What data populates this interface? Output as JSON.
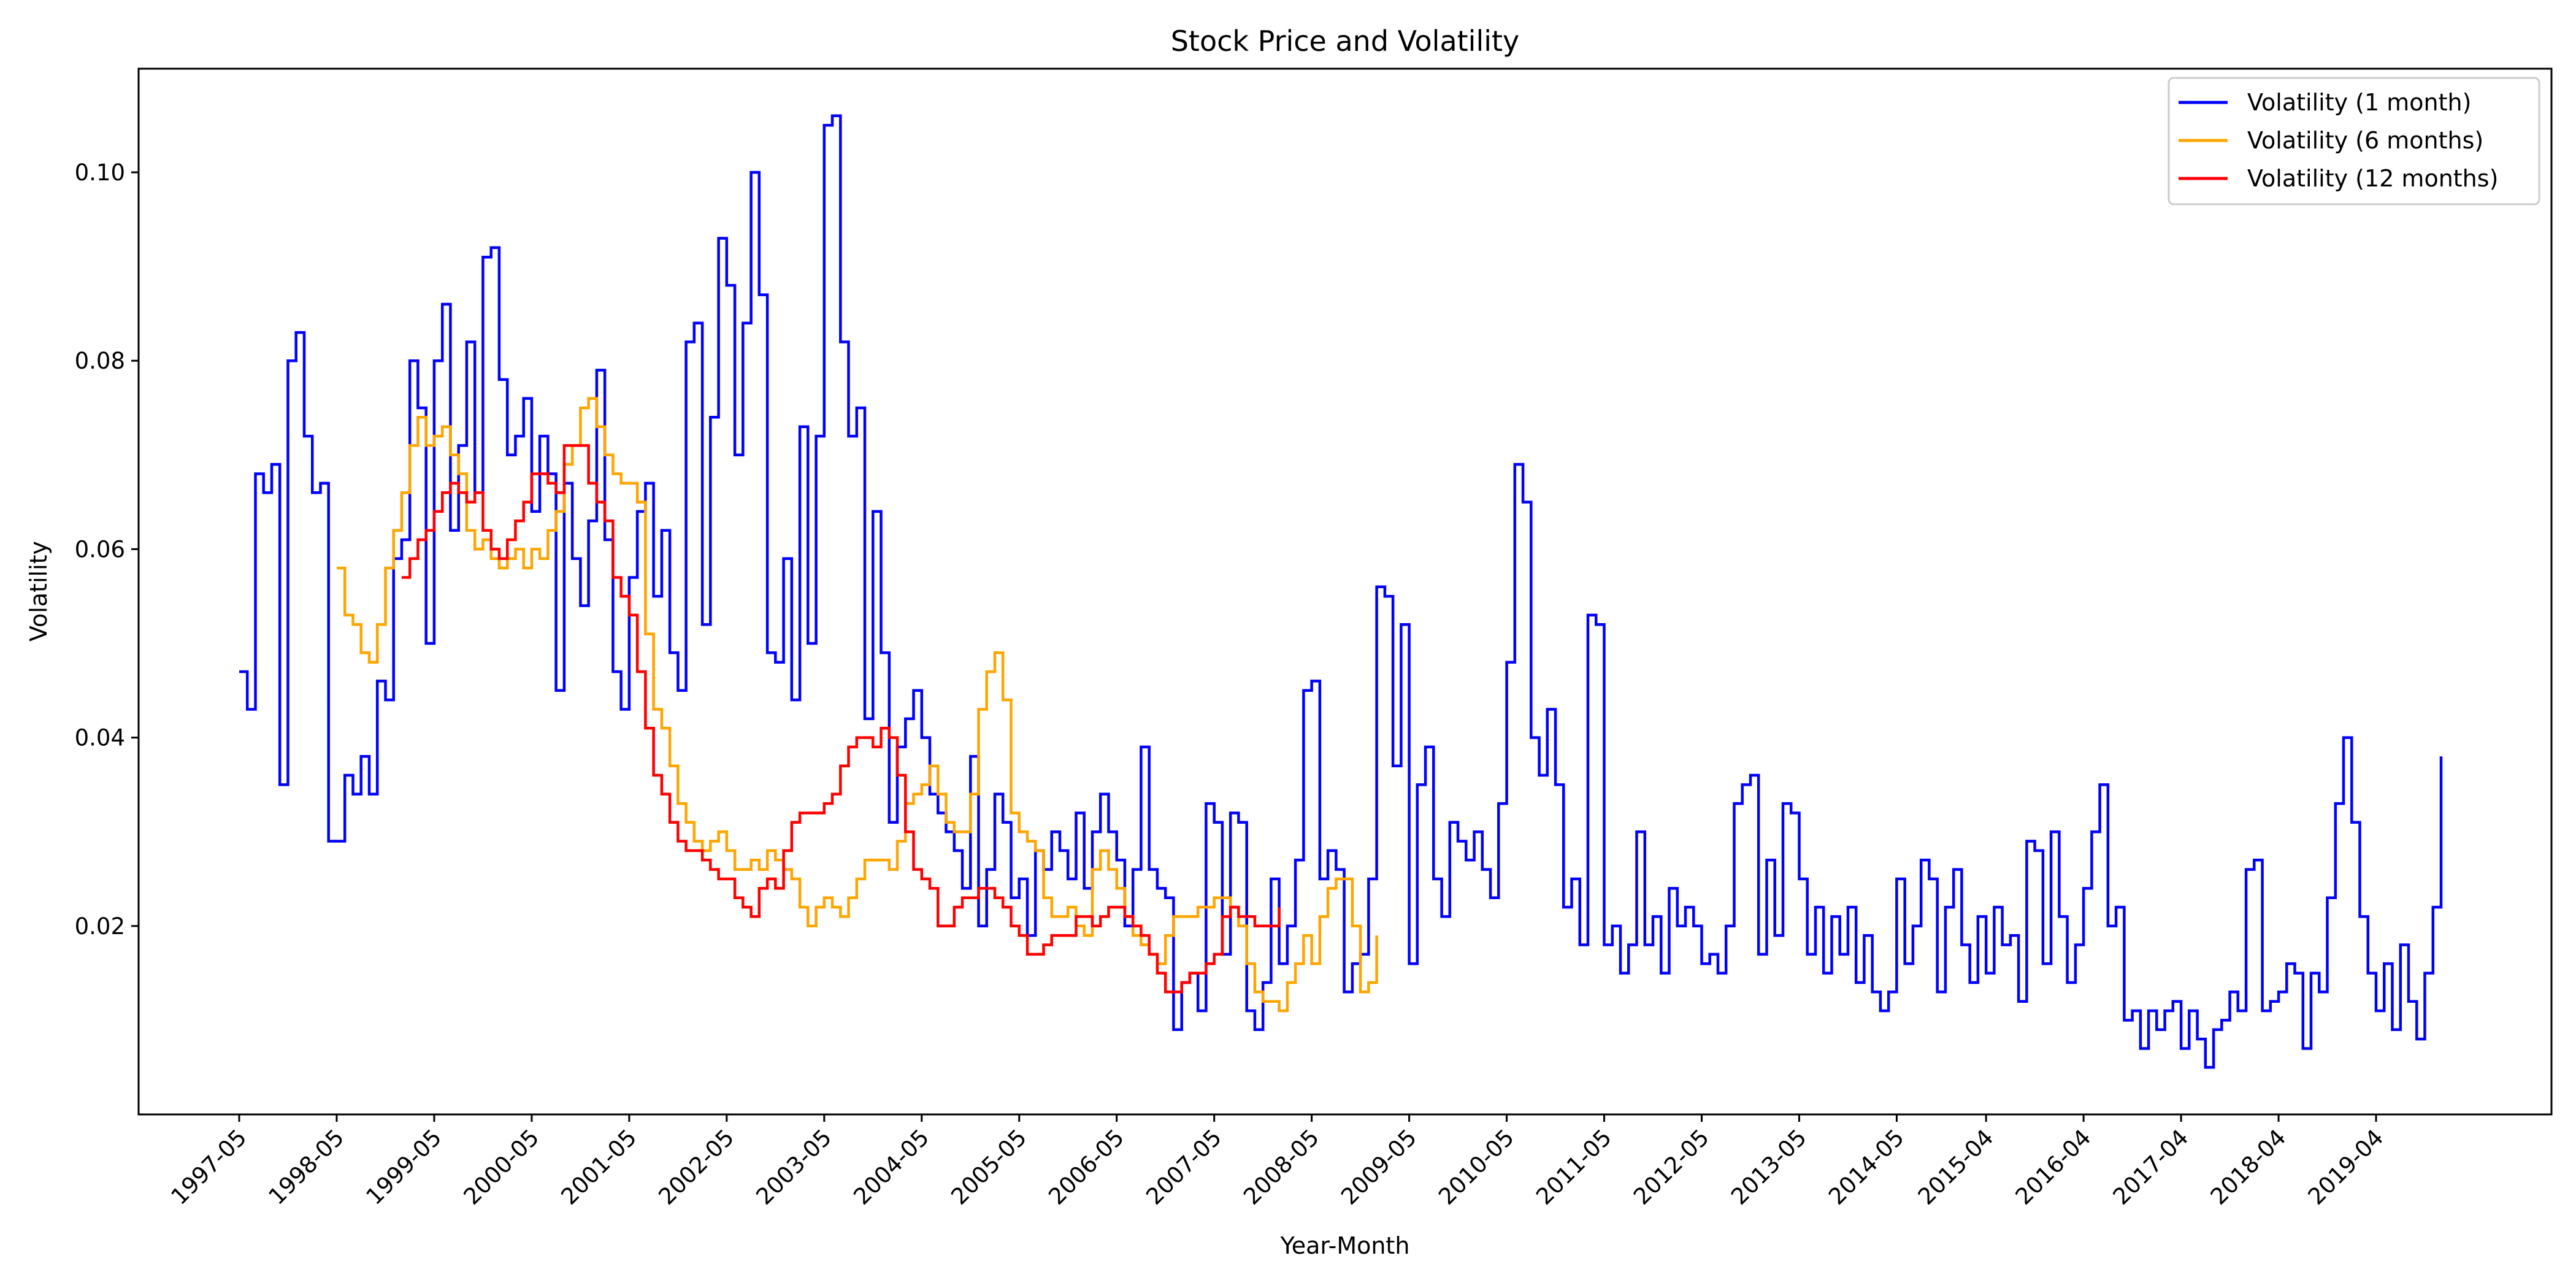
{
  "chart_data": {
    "type": "line",
    "title": "Stock Price and Volatility",
    "xlabel": "Year-Month",
    "ylabel": "Volatility",
    "ylim": [
      0.0,
      0.111
    ],
    "yticks": [
      0.02,
      0.04,
      0.06,
      0.08,
      0.1
    ],
    "ytick_labels": [
      "0.02",
      "0.04",
      "0.06",
      "0.08",
      "0.10"
    ],
    "xticks": [
      "1997-05",
      "1998-05",
      "1999-05",
      "2000-05",
      "2001-05",
      "2002-05",
      "2003-05",
      "2004-05",
      "2005-05",
      "2006-05",
      "2007-05",
      "2008-05",
      "2009-05",
      "2010-05",
      "2011-05",
      "2012-05",
      "2013-05",
      "2014-05",
      "2015-04",
      "2016-04",
      "2017-04",
      "2018-04",
      "2019-04"
    ],
    "legend_position": "top-right",
    "grid": false,
    "step": true,
    "x_start": "1997-05",
    "points_per_year": 12,
    "series": [
      {
        "name": "Volatility (1 month)",
        "color": "#0000ff",
        "values": [
          0.047,
          0.043,
          0.068,
          0.066,
          0.069,
          0.035,
          0.08,
          0.083,
          0.072,
          0.066,
          0.067,
          0.029,
          0.029,
          0.036,
          0.034,
          0.038,
          0.034,
          0.046,
          0.044,
          0.059,
          0.061,
          0.08,
          0.075,
          0.05,
          0.08,
          0.086,
          0.062,
          0.071,
          0.082,
          0.066,
          0.091,
          0.092,
          0.078,
          0.07,
          0.072,
          0.076,
          0.064,
          0.072,
          0.068,
          0.045,
          0.067,
          0.059,
          0.054,
          0.063,
          0.079,
          0.061,
          0.047,
          0.043,
          0.057,
          0.064,
          0.067,
          0.055,
          0.062,
          0.049,
          0.045,
          0.082,
          0.084,
          0.052,
          0.074,
          0.093,
          0.088,
          0.07,
          0.084,
          0.1,
          0.087,
          0.049,
          0.048,
          0.059,
          0.044,
          0.073,
          0.05,
          0.072,
          0.105,
          0.106,
          0.082,
          0.072,
          0.075,
          0.042,
          0.064,
          0.049,
          0.031,
          0.039,
          0.042,
          0.045,
          0.04,
          0.034,
          0.032,
          0.03,
          0.028,
          0.024,
          0.038,
          0.02,
          0.026,
          0.034,
          0.031,
          0.023,
          0.025,
          0.019,
          0.028,
          0.026,
          0.03,
          0.028,
          0.025,
          0.032,
          0.024,
          0.03,
          0.034,
          0.03,
          0.027,
          0.02,
          0.026,
          0.039,
          0.026,
          0.024,
          0.023,
          0.009,
          0.014,
          0.015,
          0.011,
          0.033,
          0.031,
          0.017,
          0.032,
          0.031,
          0.011,
          0.009,
          0.014,
          0.025,
          0.016,
          0.02,
          0.027,
          0.045,
          0.046,
          0.025,
          0.028,
          0.026,
          0.013,
          0.016,
          0.017,
          0.025,
          0.056,
          0.055,
          0.037,
          0.052,
          0.016,
          0.035,
          0.039,
          0.025,
          0.021,
          0.031,
          0.029,
          0.027,
          0.03,
          0.026,
          0.023,
          0.033,
          0.048,
          0.069,
          0.065,
          0.04,
          0.036,
          0.043,
          0.035,
          0.022,
          0.025,
          0.018,
          0.053,
          0.052,
          0.018,
          0.02,
          0.015,
          0.018,
          0.03,
          0.018,
          0.021,
          0.015,
          0.024,
          0.02,
          0.022,
          0.02,
          0.016,
          0.017,
          0.015,
          0.02,
          0.033,
          0.035,
          0.036,
          0.017,
          0.027,
          0.019,
          0.033,
          0.032,
          0.025,
          0.017,
          0.022,
          0.015,
          0.021,
          0.017,
          0.022,
          0.014,
          0.019,
          0.013,
          0.011,
          0.013,
          0.025,
          0.016,
          0.02,
          0.027,
          0.025,
          0.013,
          0.022,
          0.026,
          0.018,
          0.014,
          0.021,
          0.015,
          0.022,
          0.018,
          0.019,
          0.012,
          0.029,
          0.028,
          0.016,
          0.03,
          0.021,
          0.014,
          0.018,
          0.024,
          0.03,
          0.035,
          0.02,
          0.022,
          0.01,
          0.011,
          0.007,
          0.011,
          0.009,
          0.011,
          0.012,
          0.007,
          0.011,
          0.008,
          0.005,
          0.009,
          0.01,
          0.013,
          0.011,
          0.026,
          0.027,
          0.011,
          0.012,
          0.013,
          0.016,
          0.015,
          0.007,
          0.015,
          0.013,
          0.023,
          0.033,
          0.04,
          0.031,
          0.021,
          0.015,
          0.011,
          0.016,
          0.009,
          0.018,
          0.012,
          0.008,
          0.015,
          0.022,
          0.038
        ]
      },
      {
        "name": "Volatility (6 months)",
        "color": "#ffa500",
        "values": [
          null,
          null,
          null,
          null,
          null,
          null,
          null,
          null,
          null,
          null,
          null,
          null,
          0.058,
          0.053,
          0.052,
          0.049,
          0.048,
          0.052,
          0.058,
          0.062,
          0.066,
          0.071,
          0.074,
          0.071,
          0.072,
          0.073,
          0.07,
          0.068,
          0.062,
          0.06,
          0.061,
          0.059,
          0.058,
          0.059,
          0.06,
          0.058,
          0.06,
          0.059,
          0.062,
          0.064,
          0.069,
          0.071,
          0.075,
          0.076,
          0.073,
          0.07,
          0.068,
          0.067,
          0.067,
          0.065,
          0.051,
          0.043,
          0.041,
          0.037,
          0.033,
          0.031,
          0.029,
          0.028,
          0.029,
          0.03,
          0.028,
          0.026,
          0.026,
          0.027,
          0.026,
          0.028,
          0.027,
          0.026,
          0.025,
          0.022,
          0.02,
          0.022,
          0.023,
          0.022,
          0.021,
          0.023,
          0.025,
          0.027,
          0.027,
          0.027,
          0.026,
          0.029,
          0.033,
          0.034,
          0.035,
          0.037,
          0.034,
          0.031,
          0.03,
          0.03,
          0.034,
          0.043,
          0.047,
          0.049,
          0.044,
          0.032,
          0.03,
          0.029,
          0.028,
          0.023,
          0.021,
          0.021,
          0.022,
          0.02,
          0.019,
          0.026,
          0.028,
          0.026,
          0.024,
          0.021,
          0.019,
          0.018,
          0.017,
          0.016,
          0.019,
          0.021,
          0.021,
          0.021,
          0.022,
          0.022,
          0.023,
          0.023,
          0.022,
          0.02,
          0.016,
          0.013,
          0.012,
          0.012,
          0.011,
          0.014,
          0.016,
          0.019,
          0.016,
          0.021,
          0.024,
          0.025,
          0.025,
          0.02,
          0.013,
          0.014,
          0.019
        ]
      },
      {
        "name": "Volatility (12 months)",
        "color": "#ff0000",
        "values": [
          null,
          null,
          null,
          null,
          null,
          null,
          null,
          null,
          null,
          null,
          null,
          null,
          null,
          null,
          null,
          null,
          null,
          null,
          null,
          null,
          0.057,
          0.059,
          0.061,
          0.062,
          0.064,
          0.066,
          0.067,
          0.066,
          0.065,
          0.066,
          0.062,
          0.06,
          0.059,
          0.061,
          0.063,
          0.065,
          0.068,
          0.068,
          0.067,
          0.066,
          0.071,
          0.071,
          0.071,
          0.067,
          0.065,
          0.063,
          0.057,
          0.055,
          0.053,
          0.047,
          0.041,
          0.036,
          0.034,
          0.031,
          0.029,
          0.028,
          0.028,
          0.027,
          0.026,
          0.025,
          0.025,
          0.023,
          0.022,
          0.021,
          0.024,
          0.025,
          0.024,
          0.028,
          0.031,
          0.032,
          0.032,
          0.032,
          0.033,
          0.034,
          0.037,
          0.039,
          0.04,
          0.04,
          0.039,
          0.041,
          0.04,
          0.036,
          0.03,
          0.026,
          0.025,
          0.024,
          0.02,
          0.02,
          0.022,
          0.023,
          0.023,
          0.024,
          0.024,
          0.023,
          0.022,
          0.02,
          0.019,
          0.017,
          0.017,
          0.018,
          0.019,
          0.019,
          0.019,
          0.021,
          0.021,
          0.02,
          0.021,
          0.022,
          0.022,
          0.021,
          0.02,
          0.019,
          0.017,
          0.015,
          0.013,
          0.013,
          0.014,
          0.015,
          0.015,
          0.016,
          0.017,
          0.021,
          0.022,
          0.021,
          0.021,
          0.02,
          0.02,
          0.02,
          0.022
        ]
      }
    ]
  }
}
